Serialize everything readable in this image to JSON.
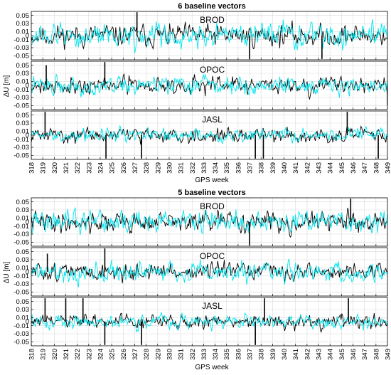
{
  "chart_data": [
    {
      "type": "line",
      "title": "6 baseline vectors",
      "xlabel": "GPS week",
      "ylabel": "ΔU [m]",
      "x_ticks": [
        "318",
        "319",
        "320",
        "321",
        "322",
        "323",
        "324",
        "325",
        "326",
        "327",
        "328",
        "329",
        "330",
        "331",
        "332",
        "333",
        "334",
        "335",
        "336",
        "337",
        "338",
        "339",
        "340",
        "341",
        "342",
        "343",
        "344",
        "345",
        "346",
        "347",
        "348",
        "349"
      ],
      "y_ticks": [
        "0.05",
        "0.03",
        "0.01",
        "0",
        "-0.01",
        "-0.03",
        "-0.05"
      ],
      "ylim": [
        -0.06,
        0.06
      ],
      "grid": true,
      "panels": [
        {
          "name": "BROD",
          "series": [
            {
              "color": "#000000",
              "std": 0.014,
              "seed": 11
            },
            {
              "color": "#00e5ee",
              "std": 0.016,
              "seed": 12
            }
          ],
          "spikes": [
            {
              "x": 337.0,
              "y": -0.058
            },
            {
              "x": 343.3,
              "y": -0.058
            },
            {
              "x": 327.2,
              "y": 0.058
            }
          ]
        },
        {
          "name": "OPOC",
          "series": [
            {
              "color": "#000000",
              "std": 0.011,
              "seed": 21
            },
            {
              "color": "#00e5ee",
              "std": 0.012,
              "seed": 22
            }
          ],
          "spikes": [
            {
              "x": 324.4,
              "y": 0.058
            },
            {
              "x": 319.3,
              "y": 0.05
            },
            {
              "x": 349.0,
              "y": -0.05
            }
          ]
        },
        {
          "name": "JASL",
          "series": [
            {
              "color": "#000000",
              "std": 0.009,
              "seed": 31
            },
            {
              "color": "#00e5ee",
              "std": 0.009,
              "seed": 32
            }
          ],
          "spikes": [
            {
              "x": 319.2,
              "y": 0.058
            },
            {
              "x": 324.5,
              "y": -0.058
            },
            {
              "x": 327.6,
              "y": -0.058
            },
            {
              "x": 337.5,
              "y": -0.058
            },
            {
              "x": 338.2,
              "y": -0.058
            },
            {
              "x": 345.5,
              "y": 0.058
            },
            {
              "x": 348.2,
              "y": -0.058
            }
          ]
        }
      ]
    },
    {
      "type": "line",
      "title": "5 baseline vectors",
      "xlabel": "GPS week",
      "ylabel": "ΔU [m]",
      "x_ticks": [
        "318",
        "319",
        "320",
        "321",
        "322",
        "323",
        "324",
        "325",
        "326",
        "327",
        "328",
        "329",
        "330",
        "331",
        "332",
        "333",
        "334",
        "335",
        "336",
        "337",
        "338",
        "339",
        "340",
        "341",
        "342",
        "343",
        "344",
        "345",
        "346",
        "347",
        "348",
        "349"
      ],
      "y_ticks": [
        "0.05",
        "0.03",
        "0.01",
        "0",
        "-0.01",
        "-0.03",
        "-0.05"
      ],
      "ylim": [
        -0.06,
        0.06
      ],
      "grid": true,
      "panels": [
        {
          "name": "BROD",
          "series": [
            {
              "color": "#000000",
              "std": 0.013,
              "seed": 41
            },
            {
              "color": "#00e5ee",
              "std": 0.015,
              "seed": 42
            }
          ],
          "spikes": [
            {
              "x": 337.0,
              "y": -0.058
            },
            {
              "x": 345.8,
              "y": 0.058
            }
          ]
        },
        {
          "name": "OPOC",
          "series": [
            {
              "color": "#000000",
              "std": 0.011,
              "seed": 51
            },
            {
              "color": "#00e5ee",
              "std": 0.013,
              "seed": 52
            }
          ],
          "spikes": [
            {
              "x": 324.4,
              "y": 0.058
            },
            {
              "x": 319.4,
              "y": 0.045
            }
          ]
        },
        {
          "name": "JASL",
          "series": [
            {
              "color": "#000000",
              "std": 0.009,
              "seed": 61
            },
            {
              "color": "#00e5ee",
              "std": 0.009,
              "seed": 62
            }
          ],
          "spikes": [
            {
              "x": 319.2,
              "y": 0.058
            },
            {
              "x": 321.0,
              "y": 0.058
            },
            {
              "x": 322.5,
              "y": 0.058
            },
            {
              "x": 324.4,
              "y": -0.058
            },
            {
              "x": 327.6,
              "y": -0.058
            },
            {
              "x": 337.5,
              "y": -0.058
            },
            {
              "x": 338.3,
              "y": 0.058
            },
            {
              "x": 345.6,
              "y": 0.058
            }
          ]
        }
      ]
    }
  ]
}
